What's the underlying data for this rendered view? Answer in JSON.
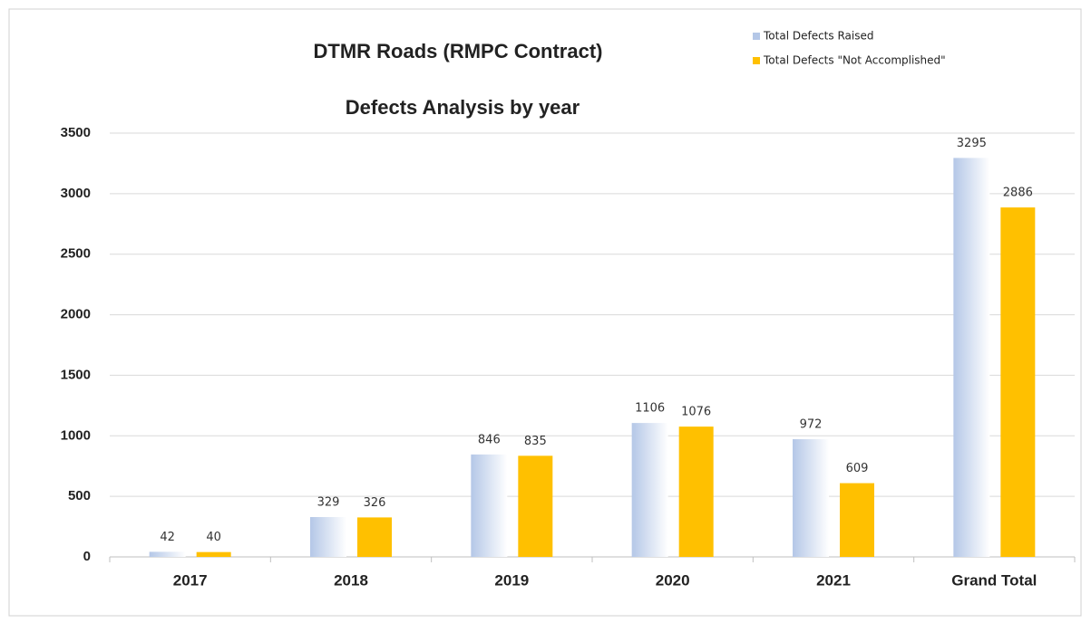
{
  "chart_data": {
    "type": "bar",
    "title": "DTMR Roads (RMPC Contract)",
    "subtitle": "Defects  Analysis by year",
    "categories": [
      "2017",
      "2018",
      "2019",
      "2020",
      "2021",
      "Grand Total"
    ],
    "series": [
      {
        "name": "Total Defects Raised",
        "color": "#b4c7e7",
        "values": [
          42,
          329,
          846,
          1106,
          972,
          3295
        ]
      },
      {
        "name": "Total Defects \"Not Accomplished\"",
        "color": "#ffc000",
        "values": [
          40,
          326,
          835,
          1076,
          609,
          2886
        ]
      }
    ],
    "ylim": [
      0,
      3500
    ],
    "yticks": [
      0,
      500,
      1000,
      1500,
      2000,
      2500,
      3000,
      3500
    ],
    "grid": true,
    "legend": "top-right"
  }
}
